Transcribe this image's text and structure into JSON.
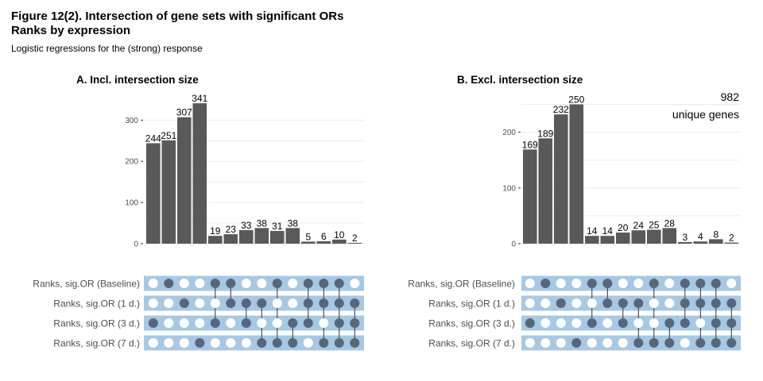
{
  "figure": {
    "title_line1": "Figure 12(2). Intersection of gene sets with significant ORs",
    "title_line2": "Ranks by expression",
    "subtitle": "Logistic regressions for the (strong) response"
  },
  "colors": {
    "bar": "#595959",
    "dot_filled": "#56677c",
    "dot_empty": "#ffffff",
    "matrix_band": "#a6c8e4",
    "grid": "#ebebeb",
    "axis_text": "#4d4d4d"
  },
  "chart_data": [
    {
      "type": "bar",
      "subtype": "upset",
      "title": "A. Incl. intersection size",
      "ylim": [
        0,
        345
      ],
      "yticks": [
        0,
        100,
        200,
        300
      ],
      "grid": true,
      "values": [
        244,
        251,
        307,
        341,
        19,
        23,
        33,
        38,
        31,
        38,
        5,
        6,
        10,
        2
      ],
      "set_names": [
        "Ranks, sig.OR (Baseline)",
        "Ranks, sig.OR (1 d.)",
        "Ranks, sig.OR (3 d.)",
        "Ranks, sig.OR (7 d.)"
      ],
      "membership": [
        [
          2
        ],
        [
          0
        ],
        [
          1
        ],
        [
          3
        ],
        [
          0,
          2
        ],
        [
          0,
          1
        ],
        [
          1,
          2
        ],
        [
          1,
          3
        ],
        [
          0,
          3
        ],
        [
          2,
          3
        ],
        [
          0,
          1,
          2
        ],
        [
          0,
          1,
          3
        ],
        [
          0,
          1,
          2,
          3
        ],
        [
          1,
          2,
          3
        ]
      ],
      "annotation": null
    },
    {
      "type": "bar",
      "subtype": "upset",
      "title": "B. Excl. intersection size",
      "ylim": [
        0,
        255
      ],
      "yticks": [
        0,
        100,
        200
      ],
      "grid": true,
      "values": [
        169,
        189,
        232,
        250,
        14,
        14,
        20,
        24,
        25,
        28,
        3,
        4,
        8,
        2
      ],
      "set_names": [
        "Ranks, sig.OR (Baseline)",
        "Ranks, sig.OR (1 d.)",
        "Ranks, sig.OR (3 d.)",
        "Ranks, sig.OR (7 d.)"
      ],
      "membership": [
        [
          2
        ],
        [
          0
        ],
        [
          1
        ],
        [
          3
        ],
        [
          0,
          2
        ],
        [
          0,
          1
        ],
        [
          1,
          2
        ],
        [
          1,
          3
        ],
        [
          0,
          3
        ],
        [
          2,
          3
        ],
        [
          0,
          1,
          2
        ],
        [
          0,
          1,
          3
        ],
        [
          0,
          1,
          2,
          3
        ],
        [
          1,
          2,
          3
        ]
      ],
      "annotation": {
        "value": "982",
        "label": "unique genes"
      }
    }
  ]
}
